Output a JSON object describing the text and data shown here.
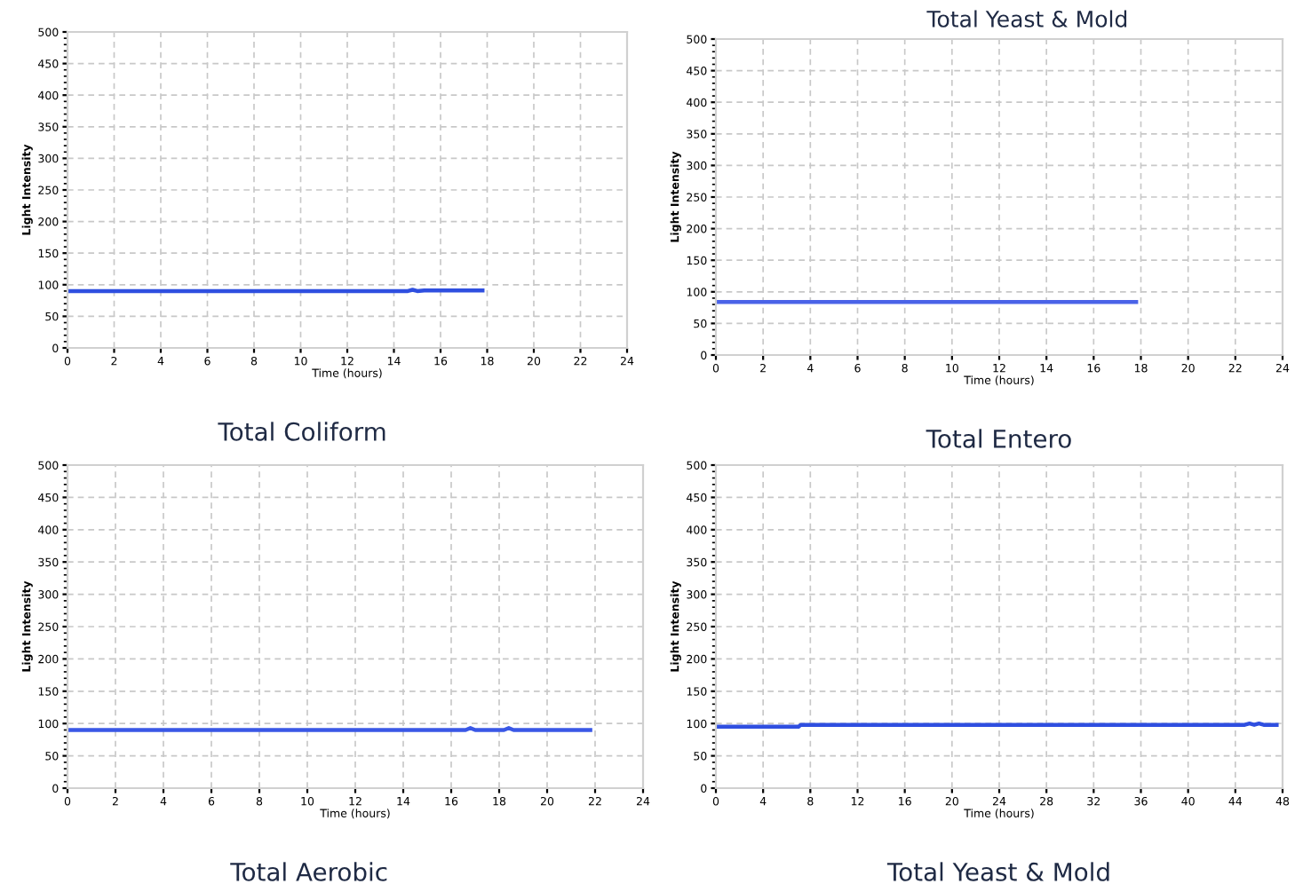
{
  "chart_data": [
    {
      "type": "line",
      "title": "Total Coliform",
      "xlabel": "Time (hours)",
      "ylabel": "Light Intensity",
      "xlim": [
        0,
        24
      ],
      "xticks": [
        0,
        2,
        4,
        6,
        8,
        10,
        12,
        14,
        16,
        18,
        20,
        22,
        24
      ],
      "ylim": [
        0,
        500
      ],
      "yticks": [
        0,
        50,
        100,
        150,
        200,
        250,
        300,
        350,
        400,
        450,
        500
      ],
      "grid": true,
      "line_style": "solid",
      "series": [
        {
          "color": "#2f4fe0",
          "x": [
            0,
            14.6,
            14.8,
            15.0,
            15.3,
            17.8
          ],
          "values": [
            90,
            90,
            92,
            90,
            91,
            91
          ]
        }
      ]
    },
    {
      "type": "line",
      "title": "Total Entero",
      "annotations": [
        "Total Yeast & Mold"
      ],
      "xlabel": "Time (hours)",
      "ylabel": "Light Intensity",
      "xlim": [
        0,
        24
      ],
      "xticks": [
        0,
        2,
        4,
        6,
        8,
        10,
        12,
        14,
        16,
        18,
        20,
        22,
        24
      ],
      "ylim": [
        0,
        500
      ],
      "yticks": [
        0,
        50,
        100,
        150,
        200,
        250,
        300,
        350,
        400,
        450,
        500
      ],
      "grid": true,
      "line_style": "solid",
      "series": [
        {
          "color": "#4a63e8",
          "x": [
            0,
            17.8
          ],
          "values": [
            84,
            84
          ]
        }
      ]
    },
    {
      "type": "line",
      "title": "Total Aerobic",
      "xlabel": "Time (hours)",
      "ylabel": "Light Intensity",
      "xlim": [
        0,
        24
      ],
      "xticks": [
        0,
        2,
        4,
        6,
        8,
        10,
        12,
        14,
        16,
        18,
        20,
        22,
        24
      ],
      "ylim": [
        0,
        500
      ],
      "yticks": [
        0,
        50,
        100,
        150,
        200,
        250,
        300,
        350,
        400,
        450,
        500
      ],
      "grid": true,
      "line_style": "solid",
      "series": [
        {
          "color": "#3a58e6",
          "x": [
            0,
            16.6,
            16.8,
            17.0,
            18.2,
            18.4,
            18.6,
            21.8
          ],
          "values": [
            90,
            90,
            93,
            90,
            90,
            93,
            90,
            90
          ]
        }
      ]
    },
    {
      "type": "line",
      "title": "Total Yeast & Mold",
      "xlabel": "Time (hours)",
      "ylabel": "Light Intensity",
      "xlim": [
        0,
        48
      ],
      "xticks": [
        0,
        4,
        8,
        12,
        16,
        20,
        24,
        28,
        32,
        36,
        40,
        44,
        48
      ],
      "ylim": [
        0,
        500
      ],
      "yticks": [
        0,
        50,
        100,
        150,
        200,
        250,
        300,
        350,
        400,
        450,
        500
      ],
      "grid": true,
      "line_style": "solid",
      "series": [
        {
          "color": "#2f4fe0",
          "x": [
            0,
            7,
            7.2,
            44.8,
            45.2,
            45.6,
            46.0,
            46.4,
            47.5
          ],
          "values": [
            95,
            95,
            98,
            98,
            100,
            98,
            100,
            98,
            98
          ]
        }
      ]
    }
  ]
}
